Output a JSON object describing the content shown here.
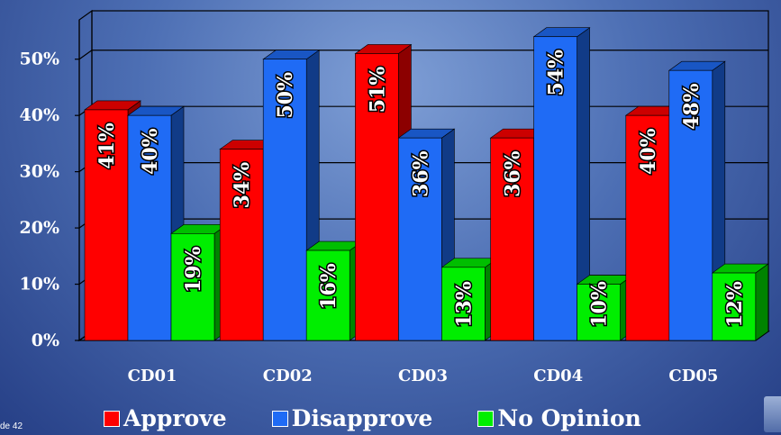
{
  "slide_number": "de 42",
  "chart_data": {
    "type": "bar",
    "categories": [
      "CD01",
      "CD02",
      "CD03",
      "CD04",
      "CD05"
    ],
    "series": [
      {
        "name": "Approve",
        "color": "#ff0000",
        "values": [
          41,
          34,
          51,
          36,
          40
        ]
      },
      {
        "name": "Disapprove",
        "color": "#1f6bf5",
        "values": [
          40,
          50,
          36,
          54,
          48
        ]
      },
      {
        "name": "No Opinion",
        "color": "#00ee00",
        "values": [
          19,
          16,
          13,
          10,
          12
        ]
      }
    ],
    "value_suffix": "%",
    "yticks": [
      "0%",
      "10%",
      "20%",
      "30%",
      "40%",
      "50%"
    ],
    "ylim": [
      0,
      57
    ],
    "grid": true,
    "legend_position": "bottom",
    "three_d": true
  }
}
